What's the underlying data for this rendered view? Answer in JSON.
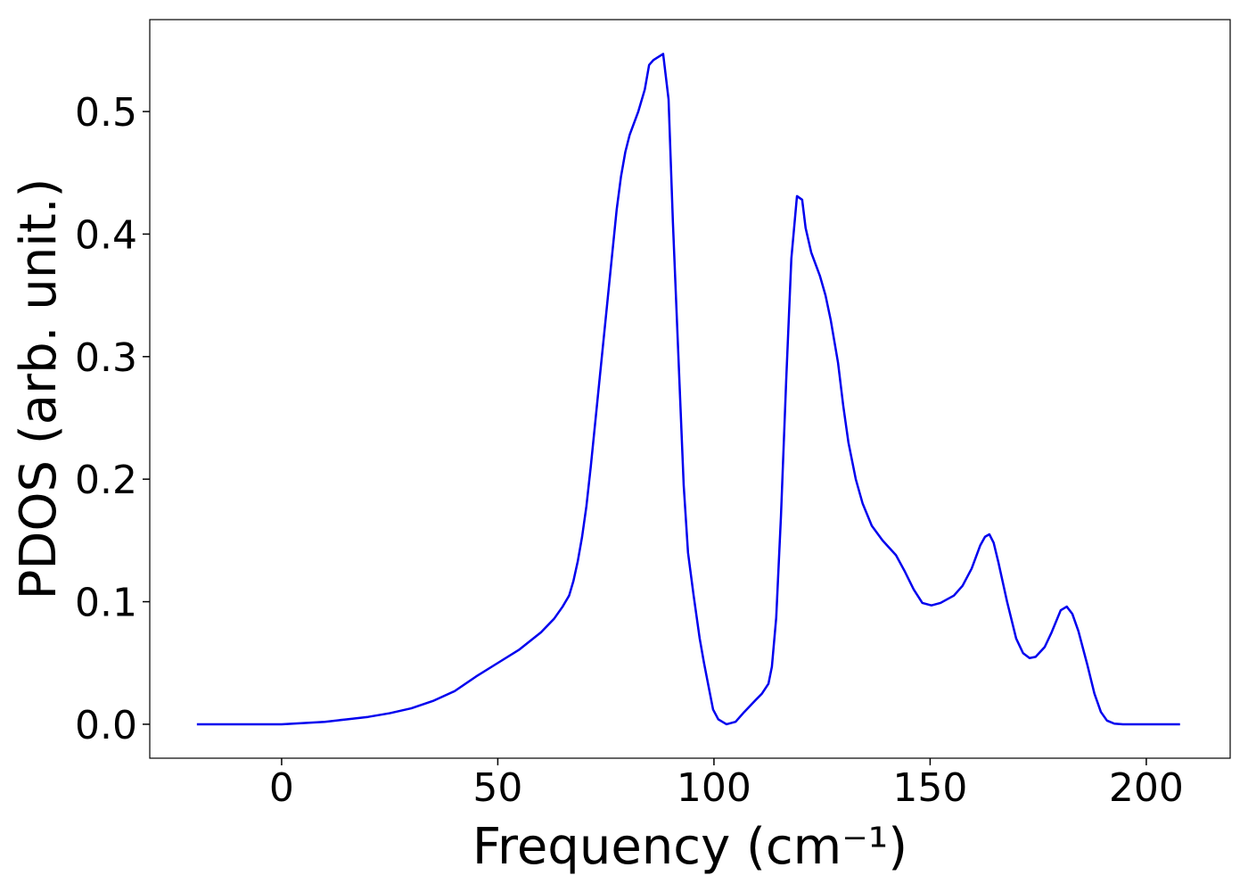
{
  "chart_data": {
    "type": "line",
    "xlabel": "Frequency (cm⁻¹)",
    "ylabel": "PDOS (arb. unit.)",
    "color": "#0000ee",
    "x": [
      -19.6,
      0,
      5,
      10,
      15,
      20,
      25,
      30,
      35,
      40,
      45,
      50,
      55,
      60,
      63,
      65,
      66.5,
      67.5,
      68.5,
      69.5,
      70.5,
      71.5,
      72.5,
      73.5,
      74.5,
      75.5,
      76.5,
      77.5,
      78.5,
      79.5,
      80.5,
      82.5,
      84,
      85,
      86,
      88.25,
      89.5,
      90.5,
      93,
      94,
      95.3,
      96.7,
      97.7,
      98.8,
      99.8,
      101,
      102.9,
      105,
      107,
      109.7,
      111.1,
      112.6,
      113.4,
      114.4,
      115.5,
      116.7,
      117.9,
      119.2,
      120.4,
      121.2,
      122.5,
      124.5,
      125.8,
      127,
      128.7,
      129.9,
      131.1,
      132.8,
      134.4,
      136.5,
      139,
      142.1,
      144.1,
      146.2,
      148.2,
      150.3,
      152.4,
      155.5,
      157.5,
      159.6,
      161.6,
      162.7,
      163.7,
      164.7,
      165.8,
      167.8,
      169.9,
      171.5,
      173,
      174.4,
      176.5,
      178.1,
      180.2,
      181.6,
      182.9,
      184.3,
      186.4,
      188,
      189.5,
      190.9,
      192.6,
      194.6,
      207.8
    ],
    "values": [
      0,
      0,
      0.001,
      0.002,
      0.004,
      0.006,
      0.009,
      0.013,
      0.019,
      0.027,
      0.039,
      0.05,
      0.061,
      0.075,
      0.086,
      0.096,
      0.105,
      0.117,
      0.133,
      0.153,
      0.178,
      0.21,
      0.245,
      0.28,
      0.315,
      0.35,
      0.385,
      0.42,
      0.447,
      0.467,
      0.481,
      0.5,
      0.518,
      0.538,
      0.542,
      0.547,
      0.51,
      0.41,
      0.195,
      0.14,
      0.105,
      0.07,
      0.05,
      0.03,
      0.012,
      0.004,
      0.0,
      0.002,
      0.01,
      0.02,
      0.025,
      0.033,
      0.047,
      0.087,
      0.17,
      0.28,
      0.38,
      0.431,
      0.428,
      0.405,
      0.385,
      0.366,
      0.35,
      0.33,
      0.295,
      0.26,
      0.23,
      0.2,
      0.18,
      0.162,
      0.15,
      0.138,
      0.125,
      0.11,
      0.099,
      0.097,
      0.099,
      0.105,
      0.113,
      0.127,
      0.146,
      0.153,
      0.155,
      0.148,
      0.132,
      0.1,
      0.07,
      0.058,
      0.054,
      0.055,
      0.063,
      0.075,
      0.093,
      0.096,
      0.09,
      0.076,
      0.048,
      0.025,
      0.01,
      0.003,
      0.0005,
      0,
      0
    ],
    "xlim": [
      -30.5,
      219.4
    ],
    "ylim": [
      -0.0277,
      0.575
    ],
    "xticks": [
      0,
      50,
      100,
      150,
      200
    ],
    "yticks": [
      {
        "value": 0,
        "label": "0.0"
      },
      0.1,
      0.2,
      0.3,
      0.4,
      0.5
    ],
    "grid": false
  }
}
